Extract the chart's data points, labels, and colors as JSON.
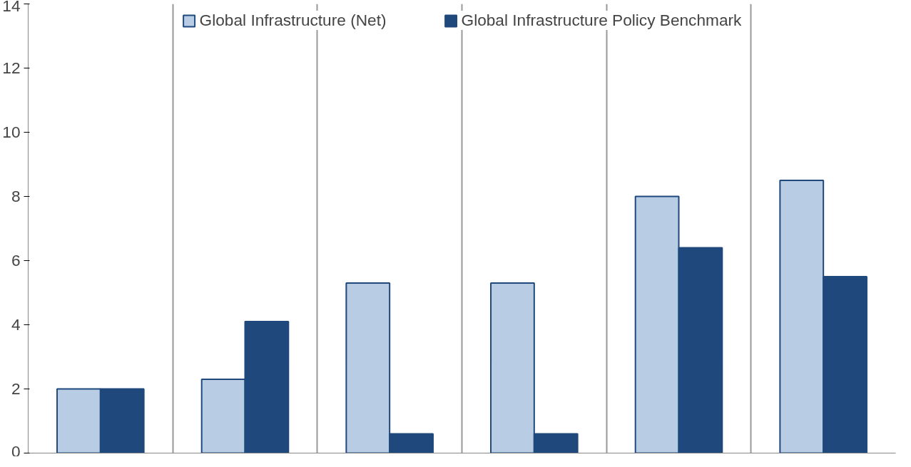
{
  "chart_data": {
    "type": "bar",
    "categories": [
      null,
      null,
      null,
      null,
      null,
      null
    ],
    "series": [
      {
        "name": "Global Infrastructure (Net)",
        "color": "#b8cce4",
        "values": [
          2.0,
          2.3,
          5.3,
          5.3,
          8.0,
          8.5
        ]
      },
      {
        "name": "Global Infrastructure Policy Benchmark",
        "color": "#1f497d",
        "values": [
          2.0,
          4.1,
          0.6,
          0.6,
          6.4,
          5.5
        ]
      }
    ],
    "ylim": [
      0,
      14
    ],
    "yticks": [
      0,
      2,
      4,
      6,
      8,
      10,
      12,
      14
    ],
    "grid": "x",
    "legend": "top",
    "tick_labels": "y"
  }
}
